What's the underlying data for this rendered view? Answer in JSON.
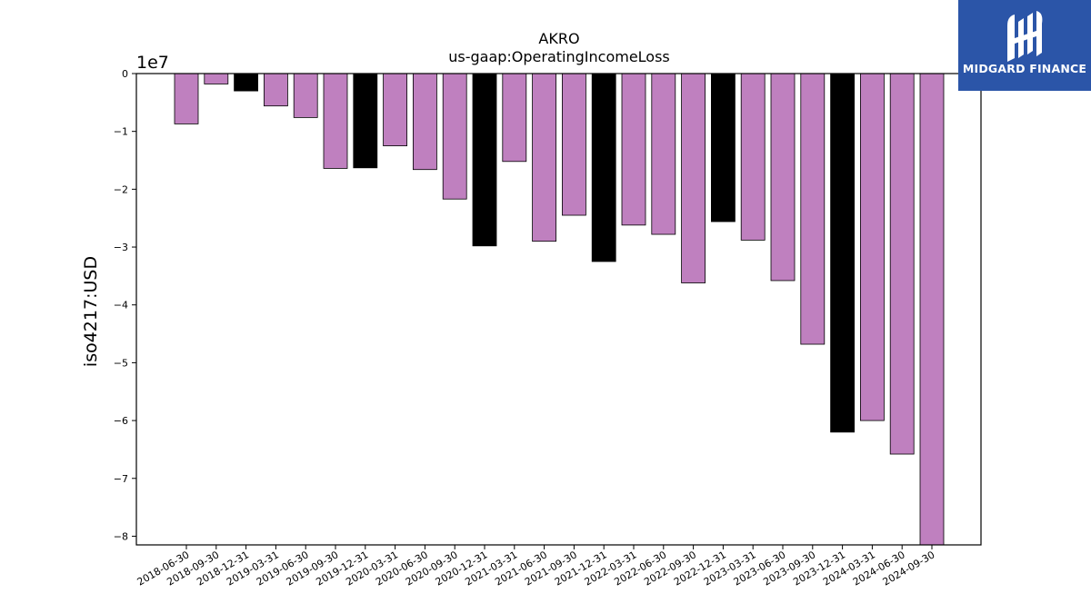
{
  "brand": {
    "name": "MIDGARD FINANCE",
    "color": "#2b55a8"
  },
  "chart_data": {
    "type": "bar",
    "title": "AKRO",
    "subtitle": "us-gaap:OperatingIncomeLoss",
    "ylabel": "iso4217:USD",
    "xlabel": "",
    "y_offset_text": "1e7",
    "y_multiplier": 10000000,
    "ylim": [
      -81500000,
      0
    ],
    "yticks": [
      0,
      -1,
      -2,
      -3,
      -4,
      -5,
      -6,
      -7,
      -8
    ],
    "ytick_labels": [
      "0",
      "−1",
      "−2",
      "−3",
      "−4",
      "−5",
      "−6",
      "−7",
      "−8"
    ],
    "grid": false,
    "colors": {
      "quarterly": "#bf80bf",
      "annual": "#000000"
    },
    "categories": [
      "2018-06-30",
      "2018-09-30",
      "2018-12-31",
      "2019-03-31",
      "2019-06-30",
      "2019-09-30",
      "2019-12-31",
      "2020-03-31",
      "2020-06-30",
      "2020-09-30",
      "2020-12-31",
      "2021-03-31",
      "2021-06-30",
      "2021-09-30",
      "2021-12-31",
      "2022-03-31",
      "2022-06-30",
      "2022-09-30",
      "2022-12-31",
      "2023-03-31",
      "2023-06-30",
      "2023-09-30",
      "2023-12-31",
      "2024-03-31",
      "2024-06-30",
      "2024-09-30"
    ],
    "values": [
      -8700000,
      -1800000,
      -3000000,
      -5600000,
      -7600000,
      -16400000,
      -16300000,
      -12500000,
      -16600000,
      -21700000,
      -29800000,
      -15200000,
      -29000000,
      -24500000,
      -32500000,
      -26200000,
      -27800000,
      -36200000,
      -25600000,
      -28800000,
      -35800000,
      -46800000,
      -62000000,
      -60000000,
      -65800000,
      -81500000
    ],
    "bar_kind": [
      "q",
      "q",
      "a",
      "q",
      "q",
      "q",
      "a",
      "q",
      "q",
      "q",
      "a",
      "q",
      "q",
      "q",
      "a",
      "q",
      "q",
      "q",
      "a",
      "q",
      "q",
      "q",
      "a",
      "q",
      "q",
      "q"
    ]
  }
}
